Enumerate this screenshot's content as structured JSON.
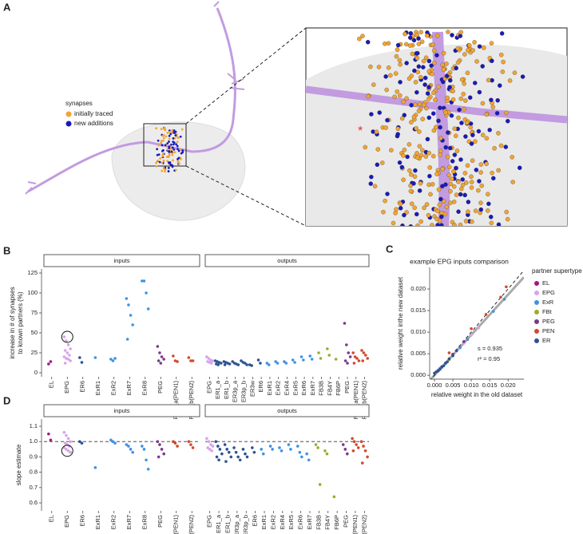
{
  "panel_a": {
    "label": "A",
    "legend_title": "synapses",
    "legend": [
      {
        "name": "initially traced",
        "color": "#f2a531"
      },
      {
        "name": "new additions",
        "color": "#1a1ab8"
      }
    ],
    "annotation": "*"
  },
  "chart_data": [
    {
      "type": "strip",
      "label": "B",
      "y_label": [
        "increase in # of synapses",
        "to known partners (%)"
      ],
      "ylim": [
        -5,
        130
      ],
      "yticks": [
        0,
        25,
        50,
        75,
        100,
        125
      ],
      "highlight": {
        "facet": 0,
        "category": 1,
        "value": 45
      },
      "facets": [
        {
          "name": "inputs",
          "categories": [
            "EL",
            "EPG",
            "ER6",
            "ExR1",
            "ExR2",
            "ExR7",
            "ExR8",
            "PEG",
            "PEN_a(PEN1)",
            "PEN_b(PEN2)"
          ],
          "colors": [
            "#a3177e",
            "#d9a3ea",
            "#2d5390",
            "#3f93e3",
            "#3f93e3",
            "#3f93e3",
            "#3f93e3",
            "#7a3a8a",
            "#d2492c",
            "#d2492c"
          ],
          "values": [
            [
              11,
              14
            ],
            [
              45,
              40,
              35,
              30,
              28,
              25,
              22,
              20,
              18,
              17,
              15,
              12
            ],
            [
              19,
              13
            ],
            [
              19
            ],
            [
              17,
              15,
              18
            ],
            [
              93,
              85,
              72,
              60,
              42
            ],
            [
              115,
              115,
              100,
              80
            ],
            [
              33,
              25,
              20,
              17,
              15,
              12
            ],
            [
              21,
              15,
              14
            ],
            [
              19,
              15,
              15
            ]
          ]
        },
        {
          "name": "outputs",
          "categories": [
            "EPG",
            "ER1_a",
            "ER1_b",
            "ER3p_a",
            "ER3p_b",
            "ER3w",
            "ER6",
            "ExR1",
            "ExR2",
            "ExR4",
            "ExR5",
            "ExR6",
            "ExR7",
            "FB3B",
            "FB4Y",
            "FB6P",
            "PEG",
            "PEN_a(PEN1)",
            "PEN_b(PEN2)"
          ],
          "colors": [
            "#d9a3ea",
            "#2d5390",
            "#2d5390",
            "#2d5390",
            "#2d5390",
            "#2d5390",
            "#2d5390",
            "#3f93e3",
            "#3f93e3",
            "#3f93e3",
            "#3f93e3",
            "#3f93e3",
            "#3f93e3",
            "#9aad2b",
            "#9aad2b",
            "#9aad2b",
            "#7a3a8a",
            "#d2492c",
            "#d2492c"
          ],
          "values": [
            [
              20,
              18,
              16,
              15,
              14,
              13,
              12
            ],
            [
              15,
              14,
              13,
              12,
              11,
              10
            ],
            [
              14,
              13,
              12,
              11,
              10
            ],
            [
              14,
              12,
              11,
              10
            ],
            [
              15,
              13,
              12,
              10
            ],
            [
              10,
              9
            ],
            [
              16,
              12
            ],
            [
              12,
              10
            ],
            [
              14,
              12
            ],
            [
              14,
              12
            ],
            [
              16,
              13
            ],
            [
              20,
              16
            ],
            [
              21,
              17
            ],
            [
              25,
              18
            ],
            [
              30,
              22
            ],
            [
              17
            ],
            [
              62,
              35,
              25,
              20,
              15,
              12
            ],
            [
              25,
              20,
              18,
              15,
              12
            ],
            [
              28,
              25,
              22,
              18,
              15
            ]
          ]
        }
      ]
    },
    {
      "type": "scatter",
      "label": "C",
      "title": "example EPG inputs comparison",
      "x_label": "relative weight in the old dataset",
      "y_label": "relative weight inthe new dataset",
      "xlim": [
        -0.0013,
        0.0243
      ],
      "ylim": [
        -0.0009,
        0.025
      ],
      "xticks": [
        {
          "value": 0,
          "label": "0.000"
        },
        {
          "value": 0.005,
          "label": "0.005"
        },
        {
          "value": 0.01,
          "label": "0.010"
        },
        {
          "value": 0.015,
          "label": "0.015"
        },
        {
          "value": 0.02,
          "label": "0.020"
        }
      ],
      "yticks": [
        {
          "value": 0,
          "label": "0.000"
        },
        {
          "value": 0.005,
          "label": "0.005"
        },
        {
          "value": 0.01,
          "label": "0.010"
        },
        {
          "value": 0.015,
          "label": "0.015"
        },
        {
          "value": 0.02,
          "label": "0.020"
        }
      ],
      "fit_slope": 0.935,
      "annotations": [
        "s = 0.935",
        "r² = 0.95"
      ],
      "legend_title": "partner supertype",
      "series": [
        {
          "name": "EL",
          "color": "#a3177e",
          "x": [
            0.001,
            0.002
          ],
          "y": [
            0.0012,
            0.0019
          ]
        },
        {
          "name": "EPG",
          "color": "#d9a3ea",
          "x": [
            0.001,
            0.002,
            0.003,
            0.004,
            0.006,
            0.008,
            0.01,
            0.012
          ],
          "y": [
            0.0011,
            0.0018,
            0.0029,
            0.0038,
            0.0056,
            0.0074,
            0.0093,
            0.011
          ]
        },
        {
          "name": "ExR",
          "color": "#3f93e3",
          "x": [
            0.0015,
            0.003,
            0.005,
            0.007,
            0.009,
            0.016,
            0.019
          ],
          "y": [
            0.0016,
            0.0027,
            0.0046,
            0.0064,
            0.0083,
            0.0148,
            0.0176
          ]
        },
        {
          "name": "FBt",
          "color": "#9aad2b",
          "x": [
            0.002,
            0.004
          ],
          "y": [
            0.0019,
            0.0036
          ]
        },
        {
          "name": "PEG",
          "color": "#7a3a8a",
          "x": [
            0.002,
            0.005,
            0.008
          ],
          "y": [
            0.002,
            0.0049,
            0.0078
          ]
        },
        {
          "name": "PEN",
          "color": "#d2492c",
          "x": [
            0.004,
            0.01,
            0.014,
            0.018,
            0.0195
          ],
          "y": [
            0.0052,
            0.0108,
            0.0141,
            0.0181,
            0.0205
          ]
        },
        {
          "name": "ER",
          "color": "#2d5390",
          "x": [
            0,
            0.0005,
            0.001,
            0.0015,
            0.002,
            0.0025,
            0.003,
            0.0035,
            0.004,
            0.005,
            0.006
          ],
          "y": [
            0.0005,
            0.0008,
            0.001,
            0.0014,
            0.0019,
            0.0022,
            0.0028,
            0.0031,
            0.0038,
            0.0045,
            0.0057
          ]
        }
      ]
    },
    {
      "type": "strip",
      "label": "D",
      "y_label": [
        "slope estimate"
      ],
      "ylim": [
        0.548,
        1.147
      ],
      "yticks": [
        0.6,
        0.7,
        0.8,
        0.9,
        {
          "value": 1,
          "label": "1.0"
        },
        1.1
      ],
      "reference_line": 1,
      "highlight": {
        "facet": 0,
        "category": 1,
        "value": 0.94
      },
      "facets": [
        {
          "name": "inputs",
          "categories": [
            "EL",
            "EPG",
            "ER6",
            "ExR1",
            "ExR2",
            "ExR7",
            "ExR8",
            "PEG",
            "PEN_a(PEN1)",
            "PEN_b(PEN2)"
          ],
          "colors": [
            "#a3177e",
            "#d9a3ea",
            "#2d5390",
            "#3f93e3",
            "#3f93e3",
            "#3f93e3",
            "#3f93e3",
            "#7a3a8a",
            "#d2492c",
            "#d2492c"
          ],
          "values": [
            [
              1.05,
              1.01
            ],
            [
              1.06,
              1.04,
              1.02,
              1.0,
              0.99,
              0.98,
              0.97,
              0.96,
              0.95,
              0.94,
              0.93
            ],
            [
              1.0,
              0.99
            ],
            [
              0.83
            ],
            [
              1.01,
              1.0,
              0.99
            ],
            [
              0.98,
              0.97,
              0.95,
              0.93
            ],
            [
              0.97,
              0.95,
              0.88,
              0.82
            ],
            [
              1.0,
              0.98,
              0.95,
              0.92,
              0.9
            ],
            [
              1.0,
              0.99,
              0.97
            ],
            [
              1.0,
              0.98,
              0.96
            ]
          ]
        },
        {
          "name": "outputs",
          "categories": [
            "EPG",
            "ER1_a",
            "ER1_b",
            "ER3p_a",
            "ER3p_b",
            "ER6",
            "ExR1",
            "ExR2",
            "ExR4",
            "ExR5",
            "ExR6",
            "ExR7",
            "FB3B",
            "FB4Y",
            "FB6P",
            "PEG",
            "PEN_a(PEN1)",
            "PEN_b(PEN2)"
          ],
          "colors": [
            "#d9a3ea",
            "#2d5390",
            "#2d5390",
            "#2d5390",
            "#2d5390",
            "#2d5390",
            "#3f93e3",
            "#3f93e3",
            "#3f93e3",
            "#3f93e3",
            "#3f93e3",
            "#3f93e3",
            "#9aad2b",
            "#9aad2b",
            "#9aad2b",
            "#7a3a8a",
            "#d2492c",
            "#d2492c"
          ],
          "values": [
            [
              1.02,
              1.0,
              0.98,
              0.97,
              0.96,
              0.95,
              0.94
            ],
            [
              1.0,
              0.97,
              0.95,
              0.92,
              0.9,
              0.88
            ],
            [
              0.98,
              0.95,
              0.93,
              0.9,
              0.87
            ],
            [
              0.96,
              0.93,
              0.9,
              0.88
            ],
            [
              0.95,
              0.92,
              0.9
            ],
            [
              0.96,
              0.93
            ],
            [
              0.95,
              0.92
            ],
            [
              0.97,
              0.95
            ],
            [
              0.96,
              0.94
            ],
            [
              0.98,
              0.95
            ],
            [
              0.97,
              0.93,
              0.9
            ],
            [
              0.92,
              0.88
            ],
            [
              0.98,
              0.96,
              0.72
            ],
            [
              0.94,
              0.92
            ],
            [
              0.64
            ],
            [
              0.98,
              0.95,
              0.92
            ],
            [
              1.02,
              1.0,
              0.98,
              0.96,
              0.94
            ],
            [
              1.0,
              0.97,
              0.94,
              0.9,
              0.86
            ]
          ]
        }
      ]
    }
  ]
}
